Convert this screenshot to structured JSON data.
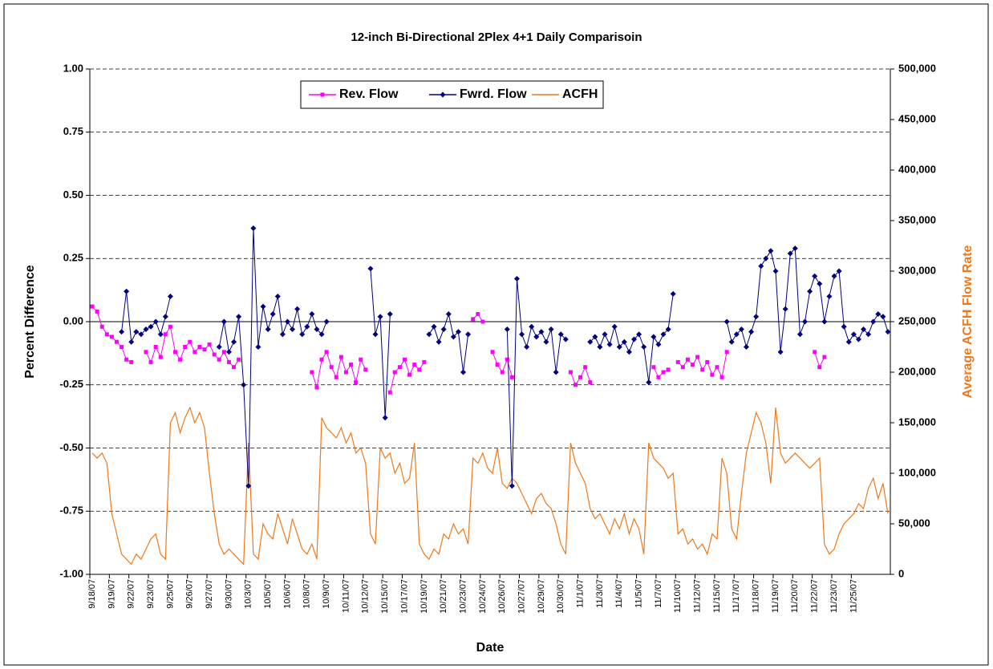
{
  "chart_data": {
    "type": "line",
    "title": "12-inch Bi-Directional 2Plex 4+1 Daily Comparisoin",
    "xlabel": "Date",
    "ylabel": "Percent Difference",
    "y2label": "Average ACFH Flow Rate",
    "legend": "top",
    "grid": true,
    "ylim": [
      -1,
      1
    ],
    "yticks": [
      {
        "value": 1,
        "label": "1.00"
      },
      {
        "value": 0.75,
        "label": "0.75"
      },
      {
        "value": 0.5,
        "label": "0.50"
      },
      {
        "value": 0.25,
        "label": "0.25"
      },
      {
        "value": 0,
        "label": "0.00"
      },
      {
        "value": -0.25,
        "label": "-0.25"
      },
      {
        "value": -0.5,
        "label": "-0.50"
      },
      {
        "value": -0.75,
        "label": "-0.75"
      },
      {
        "value": -1,
        "label": "-1.00"
      }
    ],
    "y2lim": [
      0,
      500000
    ],
    "y2ticks": [
      {
        "value": 500000,
        "label": "500,000"
      },
      {
        "value": 450000,
        "label": "450,000"
      },
      {
        "value": 400000,
        "label": "400,000"
      },
      {
        "value": 350000,
        "label": "350,000"
      },
      {
        "value": 300000,
        "label": "300,000"
      },
      {
        "value": 250000,
        "label": "250,000"
      },
      {
        "value": 200000,
        "label": "200,000"
      },
      {
        "value": 150000,
        "label": "150,000"
      },
      {
        "value": 100000,
        "label": "100,000"
      },
      {
        "value": 50000,
        "label": "50,000"
      },
      0
    ],
    "categories": [
      "9/18/07",
      null,
      null,
      null,
      "9/19/07",
      null,
      null,
      null,
      "9/22/07",
      null,
      null,
      null,
      "9/23/07",
      null,
      null,
      null,
      "9/25/07",
      null,
      null,
      null,
      "9/26/07",
      null,
      null,
      null,
      "9/27/07",
      null,
      null,
      null,
      "9/30/07",
      null,
      null,
      null,
      "10/3/07",
      null,
      null,
      null,
      "10/5/07",
      null,
      null,
      null,
      "10/6/07",
      null,
      null,
      null,
      "10/8/07",
      null,
      null,
      null,
      "10/9/07",
      null,
      null,
      null,
      "10/11/07",
      null,
      null,
      null,
      "10/12/07",
      null,
      null,
      null,
      "10/15/07",
      null,
      null,
      null,
      "10/17/07",
      null,
      null,
      null,
      "10/19/07",
      null,
      null,
      null,
      "10/21/07",
      null,
      null,
      null,
      "10/23/07",
      null,
      null,
      null,
      "10/24/07",
      null,
      null,
      null,
      "10/26/07",
      null,
      null,
      null,
      "10/27/07",
      null,
      null,
      null,
      "10/29/07",
      null,
      null,
      null,
      "10/30/07",
      null,
      null,
      null,
      "11/1/07",
      null,
      null,
      null,
      "11/3/07",
      null,
      null,
      null,
      "11/4/07",
      null,
      null,
      null,
      "11/5/07",
      null,
      null,
      null,
      "11/7/07",
      null,
      null,
      null,
      "11/10/07",
      null,
      null,
      null,
      "11/12/07",
      null,
      null,
      null,
      "11/15/07",
      null,
      null,
      null,
      "11/17/07",
      null,
      null,
      null,
      "11/18/07",
      null,
      null,
      null,
      "11/19/07",
      null,
      null,
      null,
      "11/20/07",
      null,
      null,
      null,
      "11/22/07",
      null,
      null,
      null,
      "11/23/07",
      null,
      null,
      null,
      "11/25/07",
      null,
      null,
      null,
      null,
      null,
      null,
      null
    ],
    "series": [
      {
        "name": "Rev. Flow",
        "color": "#ff00ff",
        "marker": "square",
        "values": [
          0.06,
          0.04,
          -0.02,
          -0.05,
          -0.06,
          -0.08,
          -0.1,
          -0.15,
          -0.16,
          null,
          null,
          -0.12,
          -0.16,
          -0.1,
          -0.14,
          -0.05,
          -0.02,
          -0.12,
          -0.15,
          -0.1,
          -0.08,
          -0.12,
          -0.1,
          -0.11,
          -0.09,
          -0.13,
          -0.15,
          -0.12,
          -0.16,
          -0.18,
          -0.15,
          null,
          null,
          null,
          null,
          null,
          null,
          null,
          null,
          null,
          null,
          null,
          null,
          null,
          null,
          -0.2,
          -0.26,
          -0.15,
          -0.12,
          -0.18,
          -0.22,
          -0.14,
          -0.2,
          -0.17,
          -0.24,
          -0.15,
          -0.19,
          null,
          null,
          null,
          null,
          -0.28,
          -0.2,
          -0.18,
          -0.15,
          -0.21,
          -0.17,
          -0.19,
          -0.16,
          null,
          null,
          null,
          null,
          null,
          null,
          null,
          null,
          null,
          0.01,
          0.03,
          0.0,
          null,
          -0.12,
          -0.17,
          -0.2,
          -0.15,
          -0.22,
          null,
          null,
          null,
          null,
          null,
          null,
          null,
          null,
          null,
          null,
          null,
          -0.2,
          -0.25,
          -0.22,
          -0.18,
          -0.24,
          null,
          null,
          null,
          null,
          null,
          null,
          null,
          null,
          null,
          null,
          null,
          null,
          -0.18,
          -0.22,
          -0.2,
          -0.19,
          null,
          -0.16,
          -0.18,
          -0.15,
          -0.17,
          -0.14,
          -0.19,
          -0.16,
          -0.21,
          -0.18,
          -0.22,
          -0.12,
          null,
          null,
          null,
          null,
          null,
          null,
          null,
          null,
          null,
          null,
          null,
          null,
          null,
          null,
          null,
          null,
          null,
          -0.12,
          -0.18,
          -0.14,
          null,
          null,
          null,
          null,
          null,
          null,
          null,
          null,
          null,
          null,
          null,
          null,
          null
        ]
      },
      {
        "name": "Fwrd. Flow",
        "color": "#000080",
        "marker": "diamond",
        "values": [
          null,
          null,
          null,
          null,
          null,
          null,
          -0.04,
          0.12,
          -0.08,
          -0.04,
          -0.05,
          -0.03,
          -0.02,
          0.0,
          -0.05,
          0.02,
          0.1,
          null,
          null,
          null,
          null,
          null,
          null,
          null,
          null,
          null,
          -0.1,
          0.0,
          -0.12,
          -0.08,
          0.02,
          -0.25,
          -0.65,
          0.37,
          -0.1,
          0.06,
          -0.03,
          0.03,
          0.1,
          -0.05,
          0.0,
          -0.03,
          0.05,
          -0.05,
          -0.02,
          0.03,
          -0.03,
          -0.05,
          0.0,
          null,
          null,
          null,
          null,
          null,
          null,
          null,
          null,
          0.21,
          -0.05,
          0.02,
          -0.38,
          0.03,
          null,
          null,
          null,
          null,
          null,
          null,
          null,
          -0.05,
          -0.02,
          -0.08,
          -0.03,
          0.03,
          -0.06,
          -0.04,
          -0.2,
          -0.05,
          null,
          null,
          null,
          null,
          null,
          null,
          null,
          -0.03,
          -0.65,
          0.17,
          -0.05,
          -0.1,
          -0.02,
          -0.06,
          -0.04,
          -0.08,
          -0.03,
          -0.2,
          -0.05,
          -0.07,
          null,
          null,
          null,
          null,
          -0.08,
          -0.06,
          -0.1,
          -0.05,
          -0.09,
          -0.02,
          -0.1,
          -0.08,
          -0.12,
          -0.07,
          -0.05,
          -0.1,
          -0.24,
          -0.06,
          -0.09,
          -0.05,
          -0.03,
          0.11,
          null,
          null,
          null,
          null,
          null,
          null,
          null,
          null,
          null,
          null,
          0.0,
          -0.08,
          -0.05,
          -0.03,
          -0.1,
          -0.04,
          0.02,
          0.22,
          0.25,
          0.28,
          0.2,
          -0.12,
          0.05,
          0.27,
          0.29,
          -0.05,
          0.0,
          0.12,
          0.18,
          0.15,
          0.0,
          0.1,
          0.18,
          0.2,
          -0.02,
          -0.08,
          -0.05,
          -0.07,
          -0.03,
          -0.05,
          0.0,
          0.03,
          0.02,
          -0.04
        ]
      },
      {
        "name": "ACFH",
        "color": "#f07818",
        "axis": "y2",
        "values": [
          120000,
          115000,
          120000,
          110000,
          60000,
          40000,
          20000,
          15000,
          10000,
          20000,
          15000,
          25000,
          35000,
          40000,
          20000,
          15000,
          150000,
          160000,
          140000,
          155000,
          165000,
          150000,
          160000,
          145000,
          100000,
          60000,
          30000,
          20000,
          25000,
          20000,
          15000,
          10000,
          130000,
          20000,
          15000,
          50000,
          40000,
          35000,
          60000,
          45000,
          30000,
          55000,
          40000,
          25000,
          20000,
          30000,
          15000,
          155000,
          145000,
          140000,
          135000,
          145000,
          130000,
          140000,
          120000,
          125000,
          110000,
          40000,
          30000,
          125000,
          115000,
          120000,
          100000,
          110000,
          90000,
          95000,
          130000,
          30000,
          20000,
          15000,
          25000,
          20000,
          40000,
          35000,
          50000,
          40000,
          45000,
          30000,
          115000,
          110000,
          120000,
          105000,
          100000,
          125000,
          90000,
          85000,
          95000,
          90000,
          80000,
          70000,
          60000,
          75000,
          80000,
          70000,
          65000,
          50000,
          30000,
          20000,
          130000,
          110000,
          100000,
          90000,
          65000,
          55000,
          60000,
          50000,
          40000,
          55000,
          45000,
          60000,
          40000,
          55000,
          45000,
          20000,
          130000,
          115000,
          110000,
          105000,
          95000,
          100000,
          40000,
          45000,
          30000,
          35000,
          25000,
          30000,
          20000,
          40000,
          35000,
          115000,
          100000,
          45000,
          35000,
          80000,
          120000,
          140000,
          160000,
          150000,
          130000,
          90000,
          165000,
          120000,
          110000,
          115000,
          120000,
          115000,
          110000,
          105000,
          110000,
          115000,
          30000,
          20000,
          25000,
          40000,
          50000,
          55000,
          60000,
          70000,
          65000,
          85000,
          95000,
          75000,
          90000,
          60000
        ]
      }
    ]
  }
}
